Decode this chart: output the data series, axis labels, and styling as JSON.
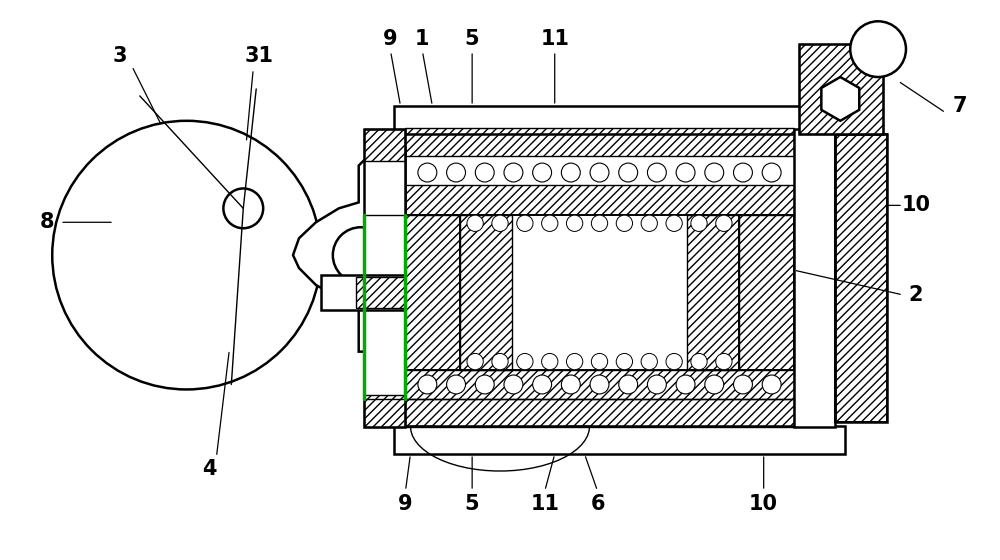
{
  "bg_color": "#ffffff",
  "line_color": "#000000",
  "fig_width": 10.0,
  "fig_height": 5.6,
  "label_fontsize": 15
}
